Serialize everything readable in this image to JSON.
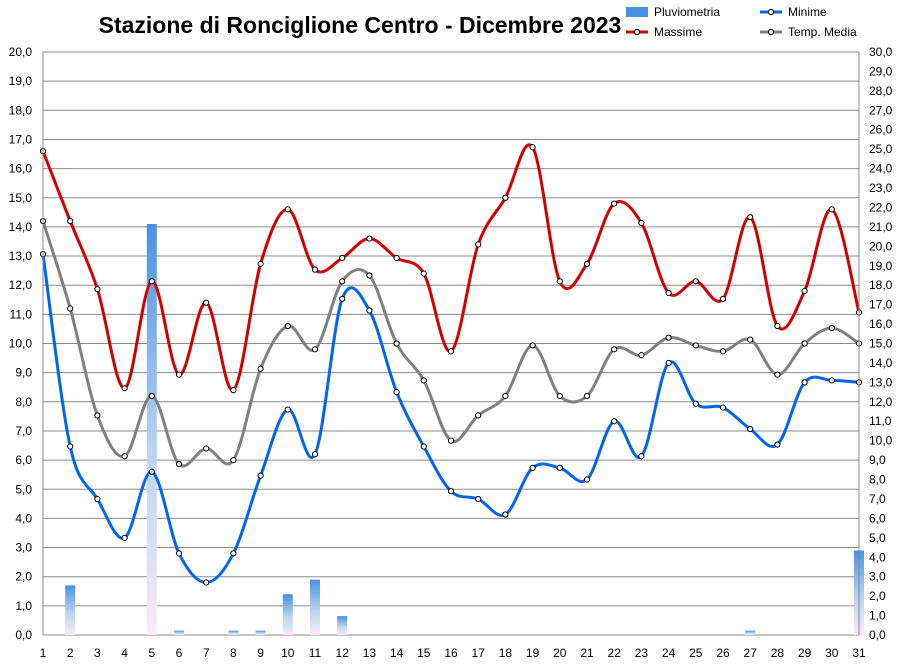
{
  "chart_data": {
    "type": "line",
    "title": "Stazione di Ronciglione Centro - Dicembre 2023",
    "categories": [
      "1",
      "2",
      "3",
      "4",
      "5",
      "6",
      "7",
      "8",
      "9",
      "10",
      "11",
      "12",
      "13",
      "14",
      "15",
      "16",
      "17",
      "18",
      "19",
      "20",
      "21",
      "22",
      "23",
      "24",
      "25",
      "26",
      "27",
      "28",
      "29",
      "30",
      "31"
    ],
    "y_left": {
      "min": 0,
      "max": 20,
      "step": 1,
      "ticks": [
        "0,0",
        "1,0",
        "2,0",
        "3,0",
        "4,0",
        "5,0",
        "6,0",
        "7,0",
        "8,0",
        "9,0",
        "10,0",
        "11,0",
        "12,0",
        "13,0",
        "14,0",
        "15,0",
        "16,0",
        "17,0",
        "18,0",
        "19,0",
        "20,0"
      ]
    },
    "y_right": {
      "min": 0,
      "max": 30,
      "step": 1,
      "ticks": [
        "0,0",
        "1,0",
        "2,0",
        "3,0",
        "4,0",
        "5,0",
        "6,0",
        "7,0",
        "8,0",
        "9,0",
        "10,0",
        "11,0",
        "12,0",
        "13,0",
        "14,0",
        "15,0",
        "16,0",
        "17,0",
        "18,0",
        "19,0",
        "20,0",
        "21,0",
        "22,0",
        "23,0",
        "24,0",
        "25,0",
        "26,0",
        "27,0",
        "28,0",
        "29,0",
        "30,0"
      ]
    },
    "grid": true,
    "legend_position": "top-right",
    "series": [
      {
        "name": "Pluviometria",
        "kind": "bar",
        "axis": "left",
        "color": "#4a90e2",
        "values": [
          0,
          1.7,
          0,
          0,
          14.1,
          0.15,
          0,
          0.15,
          0.15,
          1.4,
          1.9,
          0.65,
          0,
          0,
          0,
          0,
          0,
          0,
          0,
          0,
          0,
          0,
          0,
          0,
          0,
          0,
          0.15,
          0,
          0,
          0,
          2.9
        ]
      },
      {
        "name": "Minime",
        "kind": "line",
        "axis": "right",
        "color": "#0066ee",
        "values": [
          19.6,
          9.7,
          7.0,
          5.0,
          8.4,
          4.2,
          2.7,
          4.2,
          8.2,
          11.6,
          9.3,
          17.3,
          16.7,
          12.5,
          9.7,
          7.4,
          7.0,
          6.2,
          8.6,
          8.6,
          8.0,
          11.0,
          9.2,
          14.0,
          11.9,
          11.7,
          10.6,
          9.8,
          13.0,
          13.1,
          13.0
        ]
      },
      {
        "name": "Massime",
        "kind": "line",
        "axis": "right",
        "color": "#d40000",
        "values": [
          24.9,
          21.3,
          17.8,
          12.7,
          18.2,
          13.4,
          17.1,
          12.6,
          19.1,
          21.9,
          18.8,
          19.4,
          20.4,
          19.4,
          18.6,
          14.6,
          20.1,
          22.5,
          25.1,
          18.2,
          19.1,
          22.2,
          21.2,
          17.6,
          18.2,
          17.3,
          21.5,
          15.9,
          17.7,
          21.9,
          16.6
        ]
      },
      {
        "name": "Temp. Media",
        "kind": "line",
        "axis": "right",
        "color": "#808080",
        "values": [
          21.3,
          16.8,
          11.3,
          9.2,
          12.3,
          8.8,
          9.6,
          9.0,
          13.7,
          15.9,
          14.7,
          18.2,
          18.5,
          15.0,
          13.1,
          10.0,
          11.3,
          12.3,
          14.9,
          12.3,
          12.3,
          14.7,
          14.4,
          15.3,
          14.9,
          14.6,
          15.2,
          13.4,
          15.0,
          15.8,
          15.0
        ]
      }
    ]
  }
}
